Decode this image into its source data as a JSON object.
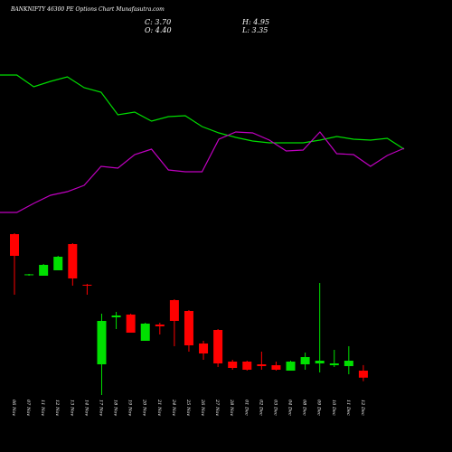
{
  "chart_data": {
    "type": "candlestick",
    "title": "BANKNIFTY 46300 PE Options Chart Munafasutra.com",
    "summary": [
      "C: 3.70",
      "H: 4.95",
      "O: 4.40",
      "L: 3.35"
    ],
    "categories": [
      "06 Nov",
      "07 Nov",
      "11 Nov",
      "12 Nov",
      "13 Nov",
      "14 Nov",
      "17 Nov",
      "18 Nov",
      "19 Nov",
      "20 Nov",
      "21 Nov",
      "24 Nov",
      "25 Nov",
      "26 Nov",
      "27 Nov",
      "28 Nov",
      "01 Dec",
      "02 Dec",
      "03 Dec",
      "04 Dec",
      "08 Dec",
      "09 Dec",
      "10 Dec",
      "11 Dec",
      "12 Dec"
    ],
    "open": [
      17.99,
      13.94,
      13.85,
      14.39,
      17.0,
      12.95,
      5.03,
      9.71,
      9.98,
      7.37,
      8.99,
      11.42,
      10.34,
      7.1,
      8.45,
      5.3,
      5.3,
      5.03,
      4.94,
      4.4,
      5.03,
      5.12,
      4.94,
      4.85,
      4.4
    ],
    "high": [
      18.08,
      14.03,
      15.02,
      15.83,
      17.09,
      13.04,
      10.07,
      10.25,
      10.07,
      9.17,
      9.17,
      11.51,
      10.43,
      7.37,
      8.54,
      5.48,
      5.39,
      6.29,
      5.3,
      5.39,
      6.2,
      13.13,
      6.47,
      6.83,
      4.95
    ],
    "low": [
      11.96,
      13.85,
      13.85,
      14.39,
      12.86,
      11.96,
      1.97,
      8.54,
      8.18,
      7.37,
      8.0,
      6.83,
      6.29,
      5.48,
      4.76,
      4.49,
      4.4,
      4.49,
      4.4,
      4.4,
      4.49,
      4.22,
      4.76,
      4.04,
      3.35
    ],
    "close": [
      15.83,
      13.99,
      14.93,
      15.74,
      13.58,
      12.86,
      9.35,
      9.89,
      8.18,
      9.08,
      8.81,
      9.35,
      6.92,
      6.11,
      5.12,
      4.67,
      4.49,
      4.85,
      4.49,
      5.3,
      5.75,
      5.39,
      5.12,
      5.39,
      3.7
    ],
    "up_color": "#00e000",
    "down_color": "#ff0000",
    "series": [
      {
        "color": "#00dd00",
        "values": [
          217,
          217,
          204,
          210,
          215,
          203,
          198,
          173,
          176,
          166,
          171,
          172,
          160,
          153,
          148,
          144,
          142,
          142,
          142,
          145,
          149,
          146,
          145,
          147,
          135
        ]
      },
      {
        "color": "#c000c0",
        "values": [
          65,
          65,
          75,
          84,
          88,
          95,
          116,
          114,
          129,
          135,
          112,
          110,
          110,
          146,
          154,
          153,
          145,
          133,
          134,
          154,
          130,
          129,
          116,
          128,
          136
        ]
      }
    ]
  }
}
